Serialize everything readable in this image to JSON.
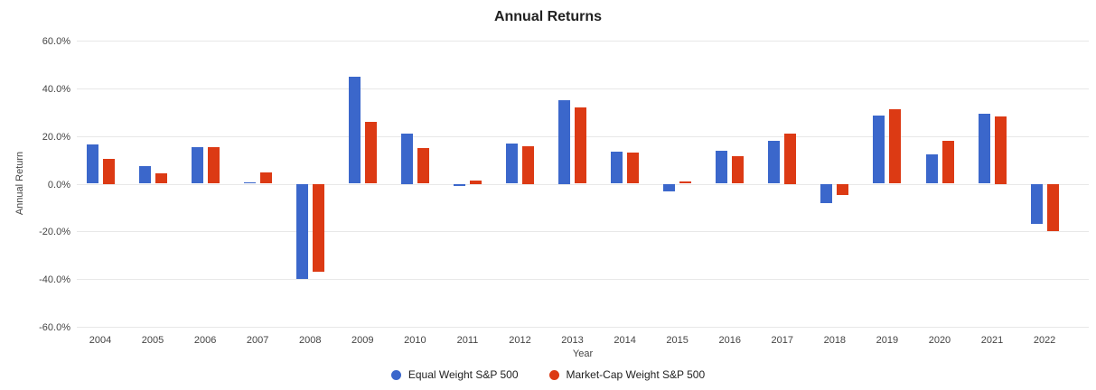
{
  "title": "Annual Returns",
  "colors": {
    "equal_weight": "#3B67CB",
    "market_cap": "#DC3A14",
    "gridline": "#E8E8E8",
    "axis_text": "#444444",
    "title_text": "#212121"
  },
  "axes": {
    "y_title": "Annual Return",
    "x_title": "Year",
    "y_ticks": [
      "60.0%",
      "40.0%",
      "20.0%",
      "0.0%",
      "-20.0%",
      "-40.0%",
      "-60.0%"
    ],
    "y_tick_values": [
      60,
      40,
      20,
      0,
      -20,
      -40,
      -60
    ]
  },
  "legend": [
    {
      "label": "Equal Weight S&P 500",
      "color_key": "equal_weight"
    },
    {
      "label": "Market-Cap Weight S&P 500",
      "color_key": "market_cap"
    }
  ],
  "chart_data": {
    "type": "bar",
    "title": "Annual Returns",
    "xlabel": "Year",
    "ylabel": "Annual Return",
    "ylim": [
      -60,
      60
    ],
    "y_tick_format": "percent",
    "grid": true,
    "legend_position": "bottom",
    "categories": [
      2004,
      2005,
      2006,
      2007,
      2008,
      2009,
      2010,
      2011,
      2012,
      2013,
      2014,
      2015,
      2016,
      2017,
      2018,
      2019,
      2020,
      2021,
      2022
    ],
    "series": [
      {
        "name": "Equal Weight S&P 500",
        "color": "#3B67CB",
        "values": [
          16.3,
          7.3,
          15.2,
          0.7,
          -39.9,
          44.8,
          21.2,
          -0.9,
          16.8,
          35.2,
          13.5,
          -3.2,
          13.9,
          18.1,
          -8.1,
          28.7,
          12.4,
          29.2,
          -16.9
        ]
      },
      {
        "name": "Market-Cap Weight S&P 500",
        "color": "#DC3A14",
        "values": [
          10.4,
          4.4,
          15.4,
          4.8,
          -36.9,
          26.1,
          14.8,
          1.5,
          15.7,
          31.9,
          12.9,
          0.9,
          11.7,
          21.2,
          -4.8,
          31.3,
          17.9,
          28.2,
          -19.9
        ]
      }
    ]
  }
}
